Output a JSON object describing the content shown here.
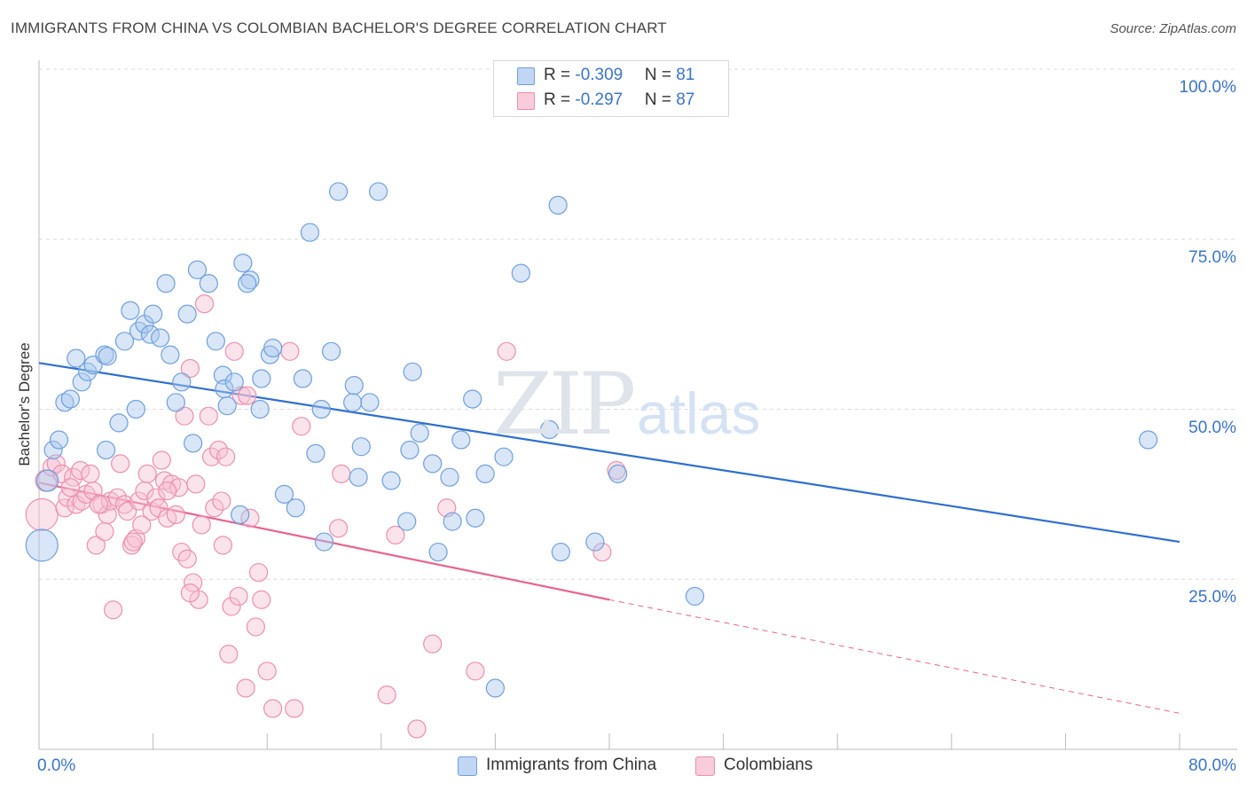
{
  "title": "IMMIGRANTS FROM CHINA VS COLOMBIAN BACHELOR'S DEGREE CORRELATION CHART",
  "source": "Source: ZipAtlas.com",
  "watermark": {
    "zip": "ZIP",
    "atlas": "atlas"
  },
  "legend": {
    "rows": [
      {
        "r_label": "R = ",
        "r_value": "-0.309",
        "n_label": "N = ",
        "n_value": "81"
      },
      {
        "r_label": "R = ",
        "r_value": "-0.297",
        "n_label": "N = ",
        "n_value": "87"
      }
    ]
  },
  "bottom_legend": [
    "Immigrants from China",
    "Colombians"
  ],
  "colors": {
    "blue_fill": "#a9c7ee",
    "blue_stroke": "#6f9fdc",
    "blue_line": "#2f6fd0",
    "pink_fill": "#f7c0d2",
    "pink_stroke": "#ec8fae",
    "pink_line": "#e8648f",
    "grid": "#dcdcdc",
    "tick_text": "#3a74c9"
  },
  "chart_data": {
    "type": "scatter",
    "title": "IMMIGRANTS FROM CHINA VS COLOMBIAN BACHELOR'S DEGREE CORRELATION CHART",
    "xlabel": "",
    "ylabel": "Bachelor's Degree",
    "xlim": [
      0,
      80
    ],
    "ylim": [
      0,
      100
    ],
    "x_tick_labels": [
      "0.0%",
      "80.0%"
    ],
    "y_tick_values": [
      25,
      50,
      75,
      100
    ],
    "y_tick_labels": [
      "25.0%",
      "50.0%",
      "75.0%",
      "100.0%"
    ],
    "grid": true,
    "series": [
      {
        "name": "Immigrants from China",
        "r": -0.309,
        "n": 81,
        "trend": {
          "x0": 0,
          "y0": 56.8,
          "x1": 80,
          "y1": 30.5
        },
        "points": [
          [
            0.2,
            30.0,
            1.8
          ],
          [
            0.6,
            39.5,
            1.2
          ],
          [
            1.0,
            44.0,
            1.0
          ],
          [
            1.4,
            45.5,
            1.0
          ],
          [
            1.8,
            51.0,
            1.0
          ],
          [
            2.2,
            51.5,
            1.0
          ],
          [
            2.6,
            57.5,
            1.0
          ],
          [
            3.0,
            54.0,
            1.0
          ],
          [
            3.4,
            55.5,
            1.0
          ],
          [
            3.8,
            56.5,
            1.0
          ],
          [
            4.6,
            58.0,
            1.0
          ],
          [
            4.8,
            57.8,
            1.0
          ],
          [
            4.7,
            44.0,
            1.0
          ],
          [
            5.6,
            48.0,
            1.0
          ],
          [
            6.0,
            60.0,
            1.0
          ],
          [
            6.4,
            64.5,
            1.0
          ],
          [
            6.8,
            50.0,
            1.0
          ],
          [
            7.0,
            61.5,
            1.0
          ],
          [
            7.4,
            62.5,
            1.0
          ],
          [
            7.8,
            61.0,
            1.0
          ],
          [
            8.0,
            64.0,
            1.0
          ],
          [
            8.5,
            60.5,
            1.0
          ],
          [
            8.9,
            68.5,
            1.0
          ],
          [
            9.2,
            58.0,
            1.0
          ],
          [
            9.6,
            51.0,
            1.0
          ],
          [
            10.0,
            54.0,
            1.0
          ],
          [
            10.4,
            64.0,
            1.0
          ],
          [
            10.8,
            45.0,
            1.0
          ],
          [
            11.1,
            70.5,
            1.0
          ],
          [
            11.9,
            68.5,
            1.0
          ],
          [
            12.4,
            60.0,
            1.0
          ],
          [
            12.9,
            55.0,
            1.0
          ],
          [
            13.0,
            53.0,
            1.0
          ],
          [
            13.2,
            50.5,
            1.0
          ],
          [
            13.7,
            54.0,
            1.0
          ],
          [
            14.1,
            34.5,
            1.0
          ],
          [
            14.3,
            71.5,
            1.0
          ],
          [
            14.8,
            69.0,
            1.0
          ],
          [
            14.6,
            68.5,
            1.0
          ],
          [
            15.5,
            50.0,
            1.0
          ],
          [
            15.6,
            54.5,
            1.0
          ],
          [
            16.2,
            58.0,
            1.0
          ],
          [
            16.4,
            59.0,
            1.0
          ],
          [
            17.2,
            37.5,
            1.0
          ],
          [
            18.0,
            35.5,
            1.0
          ],
          [
            18.5,
            54.5,
            1.0
          ],
          [
            19.0,
            76.0,
            1.0
          ],
          [
            19.4,
            43.5,
            1.0
          ],
          [
            19.8,
            50.0,
            1.0
          ],
          [
            20.0,
            30.5,
            1.0
          ],
          [
            20.5,
            58.5,
            1.0
          ],
          [
            21.0,
            82.0,
            1.0
          ],
          [
            22.0,
            51.0,
            1.0
          ],
          [
            22.1,
            53.5,
            1.0
          ],
          [
            22.4,
            40.0,
            1.0
          ],
          [
            22.6,
            44.5,
            1.0
          ],
          [
            23.2,
            51.0,
            1.0
          ],
          [
            23.8,
            82.0,
            1.0
          ],
          [
            24.7,
            39.5,
            1.0
          ],
          [
            25.8,
            33.5,
            1.0
          ],
          [
            26.0,
            44.0,
            1.0
          ],
          [
            26.2,
            55.5,
            1.0
          ],
          [
            26.7,
            46.5,
            1.0
          ],
          [
            27.6,
            42.0,
            1.0
          ],
          [
            28.0,
            29.0,
            1.0
          ],
          [
            28.8,
            40.0,
            1.0
          ],
          [
            29.0,
            33.5,
            1.0
          ],
          [
            29.6,
            45.5,
            1.0
          ],
          [
            30.4,
            51.5,
            1.0
          ],
          [
            30.6,
            34.0,
            1.0
          ],
          [
            31.3,
            40.5,
            1.0
          ],
          [
            32.0,
            9.0,
            1.0
          ],
          [
            32.6,
            43.0,
            1.0
          ],
          [
            33.8,
            70.0,
            1.0
          ],
          [
            35.8,
            47.0,
            1.0
          ],
          [
            36.4,
            80.0,
            1.0
          ],
          [
            36.6,
            29.0,
            1.0
          ],
          [
            39.0,
            30.5,
            1.0
          ],
          [
            40.6,
            40.5,
            1.0
          ],
          [
            46.0,
            22.5,
            1.0
          ],
          [
            77.8,
            45.5,
            1.0
          ]
        ]
      },
      {
        "name": "Colombians",
        "r": -0.297,
        "n": 87,
        "trend": {
          "x0": 0,
          "y0": 39.2,
          "x1": 40,
          "y1": 22.0,
          "dash_x1": 80,
          "dash_y1": 5.3
        },
        "points": [
          [
            0.2,
            34.5,
            1.8
          ],
          [
            0.5,
            39.5,
            1.2
          ],
          [
            0.9,
            41.5,
            1.0
          ],
          [
            1.2,
            42.0,
            1.0
          ],
          [
            1.6,
            40.5,
            1.0
          ],
          [
            1.8,
            35.5,
            1.0
          ],
          [
            2.0,
            37.0,
            1.0
          ],
          [
            2.4,
            40.0,
            1.0
          ],
          [
            2.6,
            36.0,
            1.0
          ],
          [
            2.9,
            41.0,
            1.0
          ],
          [
            3.0,
            36.5,
            1.0
          ],
          [
            3.3,
            37.5,
            1.0
          ],
          [
            3.6,
            40.5,
            1.0
          ],
          [
            3.8,
            38.0,
            1.0
          ],
          [
            4.0,
            30.0,
            1.0
          ],
          [
            4.4,
            36.0,
            1.0
          ],
          [
            4.6,
            32.0,
            1.0
          ],
          [
            4.8,
            34.5,
            1.0
          ],
          [
            5.0,
            36.5,
            1.0
          ],
          [
            5.2,
            20.5,
            1.0
          ],
          [
            5.5,
            37.0,
            1.0
          ],
          [
            5.7,
            42.0,
            1.0
          ],
          [
            6.0,
            36.0,
            1.0
          ],
          [
            6.2,
            35.0,
            1.0
          ],
          [
            6.5,
            30.0,
            1.0
          ],
          [
            6.8,
            31.0,
            1.0
          ],
          [
            7.0,
            36.5,
            1.0
          ],
          [
            7.2,
            33.0,
            1.0
          ],
          [
            7.4,
            38.0,
            1.0
          ],
          [
            7.6,
            40.5,
            1.0
          ],
          [
            7.9,
            35.0,
            1.0
          ],
          [
            8.2,
            37.0,
            1.0
          ],
          [
            8.4,
            35.5,
            1.0
          ],
          [
            8.6,
            42.5,
            1.0
          ],
          [
            8.8,
            39.5,
            1.0
          ],
          [
            9.0,
            34.0,
            1.0
          ],
          [
            9.3,
            39.0,
            1.0
          ],
          [
            9.6,
            34.5,
            1.0
          ],
          [
            9.8,
            38.5,
            1.0
          ],
          [
            10.0,
            29.0,
            1.0
          ],
          [
            10.2,
            49.0,
            1.0
          ],
          [
            10.4,
            28.0,
            1.0
          ],
          [
            10.6,
            56.0,
            1.0
          ],
          [
            10.8,
            24.5,
            1.0
          ],
          [
            11.0,
            39.0,
            1.0
          ],
          [
            11.2,
            22.0,
            1.0
          ],
          [
            11.4,
            33.0,
            1.0
          ],
          [
            11.6,
            65.5,
            1.0
          ],
          [
            11.9,
            49.0,
            1.0
          ],
          [
            12.1,
            43.0,
            1.0
          ],
          [
            12.3,
            35.5,
            1.0
          ],
          [
            12.6,
            44.0,
            1.0
          ],
          [
            12.9,
            30.0,
            1.0
          ],
          [
            13.1,
            43.0,
            1.0
          ],
          [
            13.3,
            14.0,
            1.0
          ],
          [
            13.5,
            21.0,
            1.0
          ],
          [
            13.7,
            58.5,
            1.0
          ],
          [
            14.0,
            22.5,
            1.0
          ],
          [
            14.2,
            52.0,
            1.0
          ],
          [
            14.5,
            9.0,
            1.0
          ],
          [
            14.8,
            34.0,
            1.0
          ],
          [
            15.2,
            18.0,
            1.0
          ],
          [
            15.4,
            26.0,
            1.0
          ],
          [
            15.6,
            22.0,
            1.0
          ],
          [
            16.0,
            11.5,
            1.0
          ],
          [
            16.4,
            6.0,
            1.0
          ],
          [
            17.6,
            58.5,
            1.0
          ],
          [
            17.9,
            6.0,
            1.0
          ],
          [
            18.4,
            47.5,
            1.0
          ],
          [
            21.0,
            32.5,
            1.0
          ],
          [
            21.2,
            40.5,
            1.0
          ],
          [
            24.4,
            8.0,
            1.0
          ],
          [
            25.0,
            31.5,
            1.0
          ],
          [
            26.5,
            3.0,
            1.0
          ],
          [
            27.6,
            15.5,
            1.0
          ],
          [
            28.6,
            35.5,
            1.0
          ],
          [
            30.6,
            11.5,
            1.0
          ],
          [
            32.8,
            58.5,
            1.0
          ],
          [
            39.5,
            29.0,
            1.0
          ],
          [
            40.5,
            41.0,
            1.0
          ],
          [
            2.2,
            38.5,
            1.0
          ],
          [
            4.2,
            36.0,
            1.0
          ],
          [
            6.6,
            30.5,
            1.0
          ],
          [
            9.0,
            38.0,
            1.0
          ],
          [
            10.6,
            23.0,
            1.0
          ],
          [
            12.8,
            36.5,
            1.0
          ],
          [
            14.6,
            52.0,
            1.0
          ]
        ]
      }
    ]
  }
}
